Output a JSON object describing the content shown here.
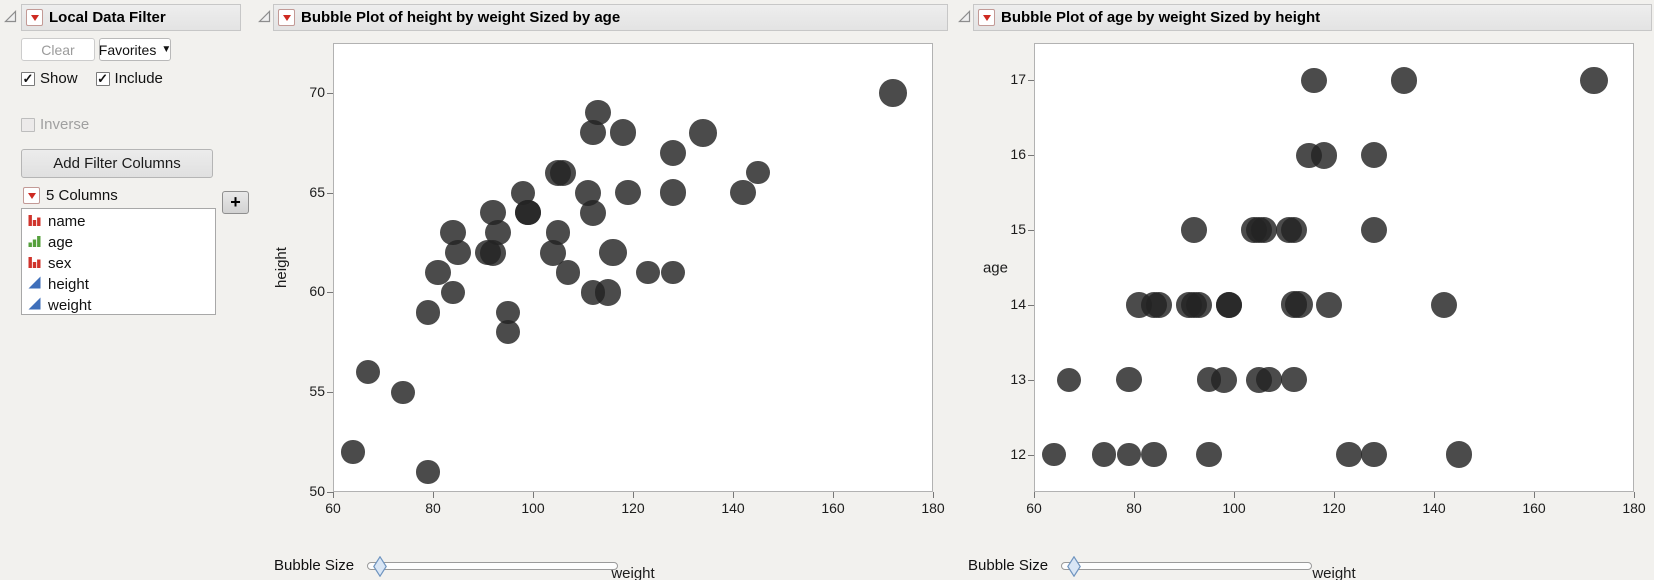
{
  "filter_panel": {
    "title": "Local Data Filter",
    "clear_button": "Clear",
    "favorites_button": "Favorites",
    "show_label": "Show",
    "include_label": "Include",
    "inverse_label": "Inverse",
    "add_filter_columns_button": "Add Filter Columns",
    "columns_count_label": "5 Columns",
    "add_button": "+",
    "columns": [
      {
        "name": "name",
        "type": "nominal"
      },
      {
        "name": "age",
        "type": "ordinal"
      },
      {
        "name": "sex",
        "type": "nominal"
      },
      {
        "name": "height",
        "type": "continuous"
      },
      {
        "name": "weight",
        "type": "continuous"
      }
    ]
  },
  "colors": {
    "background": "#f2f1ee",
    "bubble": "#232323",
    "red_accent": "#ce2a21",
    "nominal_icon": "#d0342c",
    "ordinal_icon": "#55a03c",
    "continuous_icon": "#3f6fba",
    "slider_thumb": "#d9e6f5"
  },
  "chart_data": {
    "records": {
      "fields": [
        "age",
        "height",
        "weight"
      ],
      "rows": [
        [
          12,
          59,
          95
        ],
        [
          12,
          61,
          123
        ],
        [
          12,
          55,
          74
        ],
        [
          12,
          66,
          145
        ],
        [
          12,
          52,
          64
        ],
        [
          12,
          60,
          84
        ],
        [
          12,
          61,
          128
        ],
        [
          12,
          51,
          79
        ],
        [
          13,
          60,
          112
        ],
        [
          13,
          61,
          107
        ],
        [
          13,
          56,
          67
        ],
        [
          13,
          65,
          98
        ],
        [
          13,
          63,
          105
        ],
        [
          13,
          58,
          95
        ],
        [
          13,
          59,
          79
        ],
        [
          14,
          61,
          81
        ],
        [
          14,
          62,
          91
        ],
        [
          14,
          65,
          142
        ],
        [
          14,
          63,
          84
        ],
        [
          14,
          62,
          85
        ],
        [
          14,
          63,
          93
        ],
        [
          14,
          64,
          99
        ],
        [
          14,
          65,
          119
        ],
        [
          14,
          64,
          92
        ],
        [
          14,
          68,
          112
        ],
        [
          14,
          64,
          99
        ],
        [
          14,
          69,
          113
        ],
        [
          15,
          62,
          92
        ],
        [
          15,
          64,
          112
        ],
        [
          15,
          67,
          128
        ],
        [
          15,
          65,
          111
        ],
        [
          15,
          66,
          105
        ],
        [
          15,
          62,
          104
        ],
        [
          15,
          66,
          106
        ],
        [
          16,
          65,
          128
        ],
        [
          16,
          60,
          115
        ],
        [
          16,
          68,
          118
        ],
        [
          17,
          62,
          116
        ],
        [
          17,
          68,
          134
        ],
        [
          17,
          70,
          172
        ]
      ]
    },
    "charts": [
      {
        "type": "scatter",
        "title": "Bubble Plot of height by weight Sized by age",
        "xlabel": "weight",
        "ylabel": "height",
        "x_field": "weight",
        "y_field": "height",
        "size_field": "age",
        "xlim": [
          60,
          180
        ],
        "ylim": [
          50,
          72.5
        ],
        "xticks": [
          60,
          80,
          100,
          120,
          140,
          160,
          180
        ],
        "yticks": [
          50,
          55,
          60,
          65,
          70
        ],
        "size_k": 6.73,
        "grid": false,
        "legend": "none",
        "bubble_size_label": "Bubble Size"
      },
      {
        "type": "scatter",
        "title": "Bubble Plot of age by weight Sized by height",
        "xlabel": "weight",
        "ylabel": "age",
        "x_field": "weight",
        "y_field": "age",
        "size_field": "height",
        "xlim": [
          60,
          180
        ],
        "ylim": [
          11.5,
          17.5
        ],
        "xticks": [
          60,
          80,
          100,
          120,
          140,
          160,
          180
        ],
        "yticks": [
          12,
          13,
          14,
          15,
          16,
          17
        ],
        "size_k": 3.26,
        "grid": false,
        "legend": "none",
        "bubble_size_label": "Bubble Size"
      }
    ]
  }
}
